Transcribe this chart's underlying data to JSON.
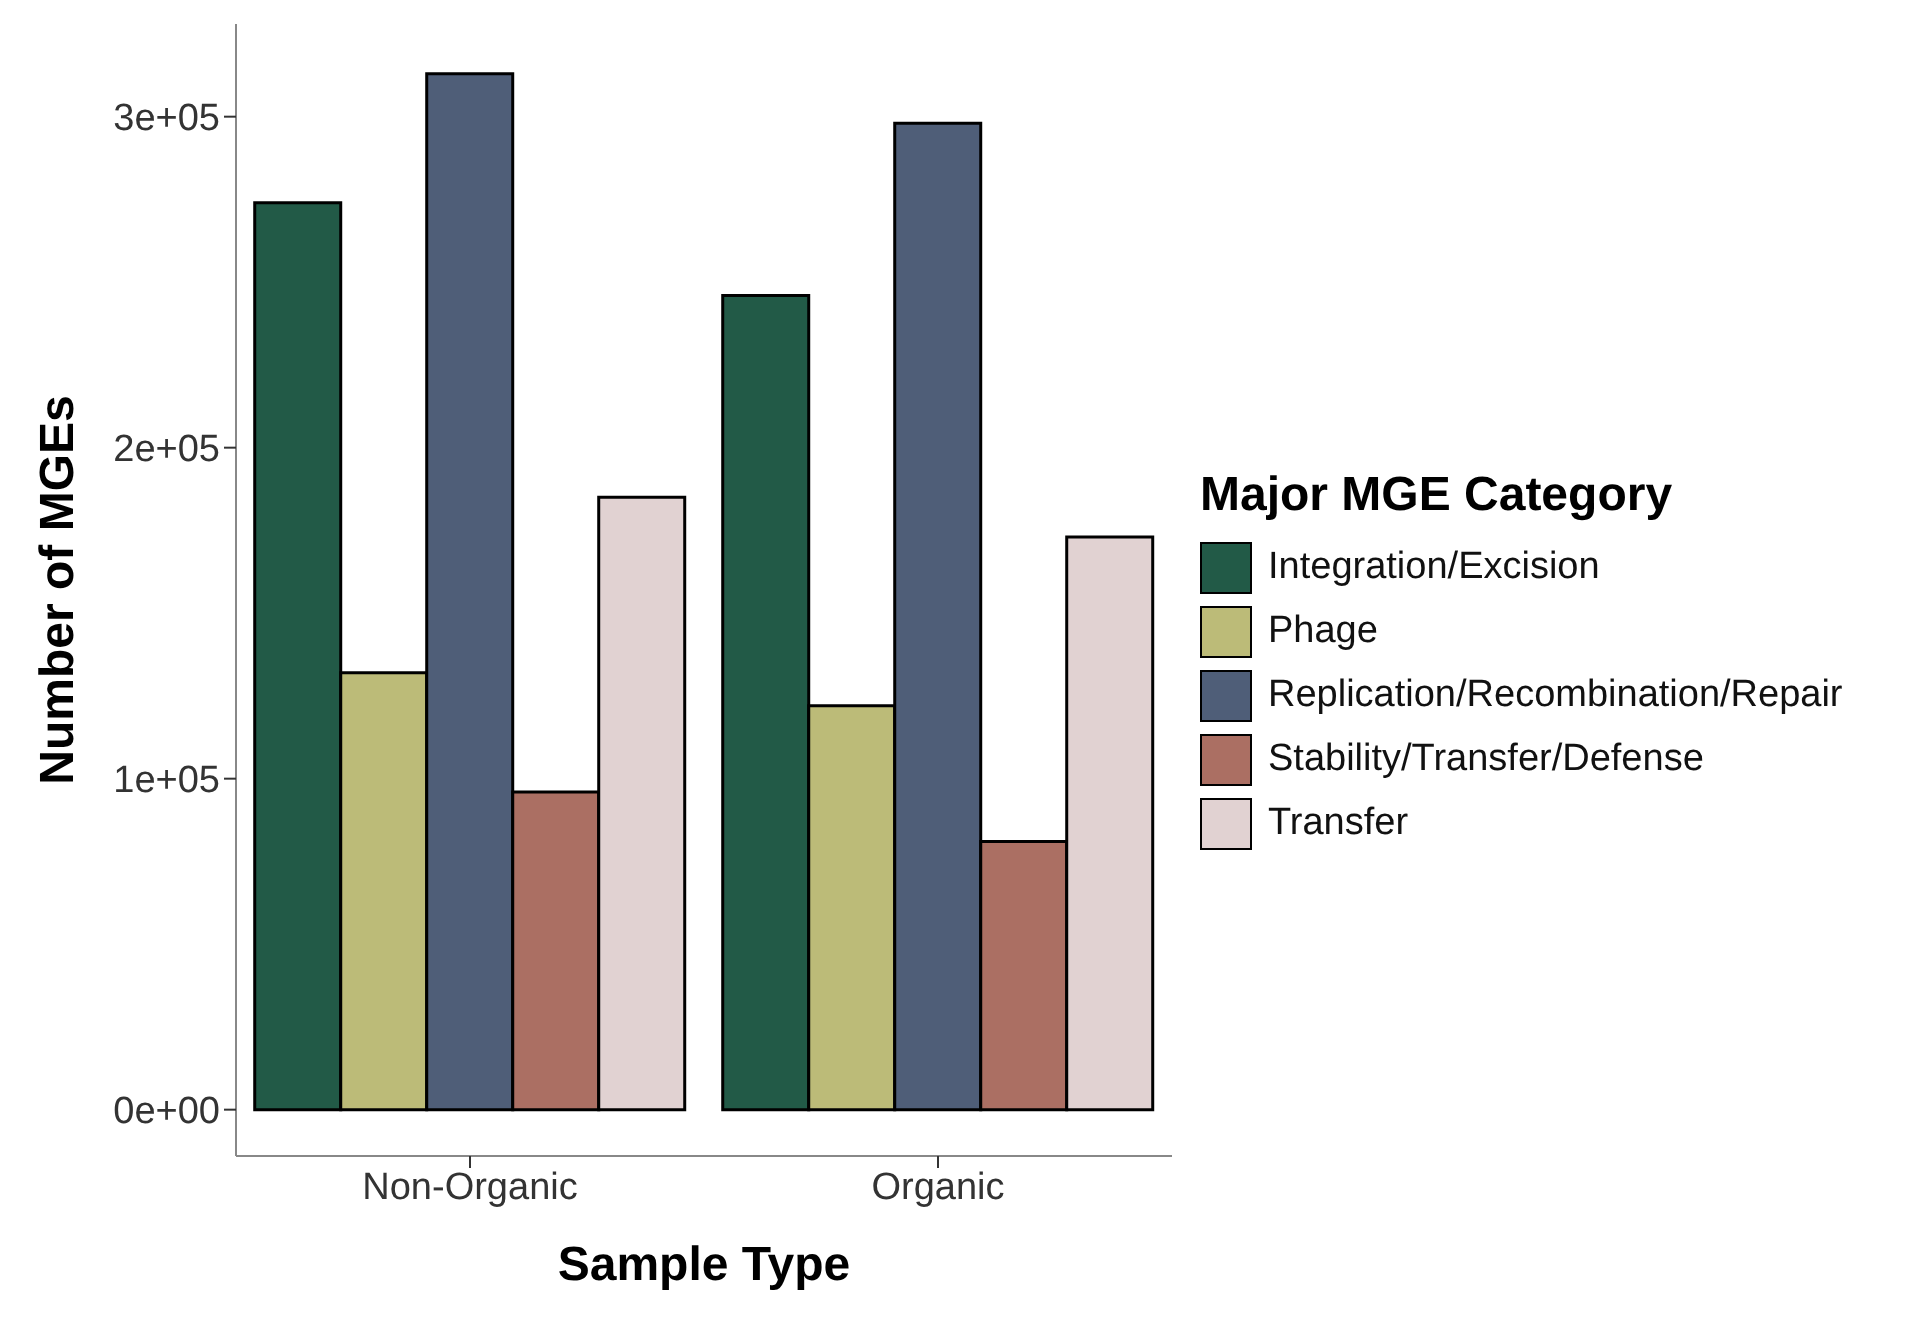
{
  "chart_data": {
    "type": "bar",
    "xlabel": "Sample Type",
    "ylabel": "Number of MGEs",
    "legend_title": "Major MGE Category",
    "categories": [
      "Non-Organic",
      "Organic"
    ],
    "series": [
      {
        "name": "Integration/Excision",
        "color": "#225a47",
        "values": [
          274000,
          246000
        ]
      },
      {
        "name": "Phage",
        "color": "#bcbb78",
        "values": [
          132000,
          122000
        ]
      },
      {
        "name": "Replication/Recombination/Repair",
        "color": "#4f5e78",
        "values": [
          313000,
          298000
        ]
      },
      {
        "name": "Stability/Transfer/Defense",
        "color": "#ab6f63",
        "values": [
          96000,
          81000
        ]
      },
      {
        "name": "Transfer",
        "color": "#e1d2d2",
        "values": [
          185000,
          173000
        ]
      }
    ],
    "ylim": [
      -14000,
      328000
    ],
    "yticks": [
      {
        "value": 0,
        "label": "0e+00"
      },
      {
        "value": 100000,
        "label": "1e+05"
      },
      {
        "value": 200000,
        "label": "2e+05"
      },
      {
        "value": 300000,
        "label": "3e+05"
      }
    ],
    "grid": false,
    "legend": "right"
  }
}
